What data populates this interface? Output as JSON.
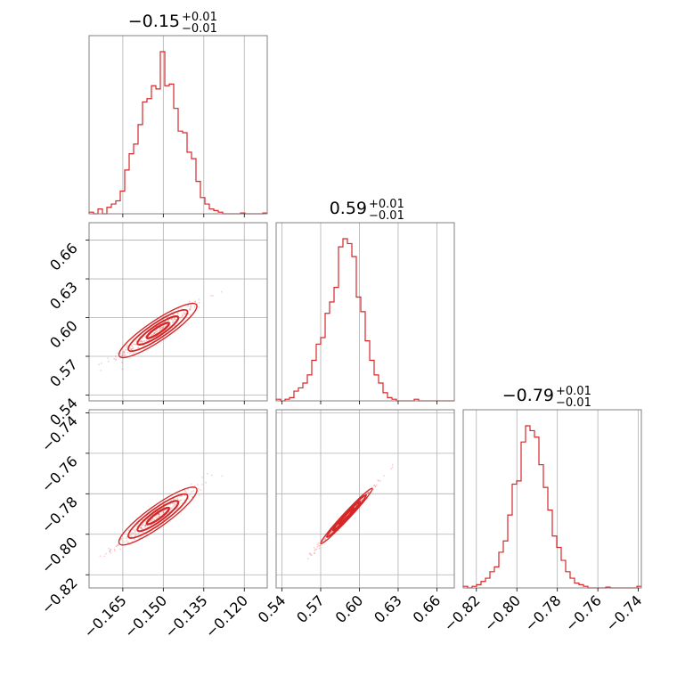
{
  "chart_data": {
    "type": "corner",
    "color": "#d62728",
    "parameters": [
      {
        "title_value": "−0.15",
        "title_plus": "+0.01",
        "title_minus": "−0.01",
        "mean": -0.152,
        "sd": 0.0068,
        "range": [
          -0.1775,
          -0.1115
        ],
        "ticks": [
          -0.165,
          -0.15,
          -0.135,
          -0.12
        ],
        "tick_labels": [
          "−0.165",
          "−0.150",
          "−0.135",
          "−0.120"
        ],
        "hist": [
          0.01,
          0.0,
          0.03,
          0.0,
          0.04,
          0.06,
          0.08,
          0.14,
          0.27,
          0.37,
          0.43,
          0.55,
          0.69,
          0.71,
          0.79,
          0.77,
          1.0,
          0.79,
          0.8,
          0.65,
          0.51,
          0.5,
          0.38,
          0.34,
          0.2,
          0.1,
          0.06,
          0.03,
          0.02,
          0.01,
          0.0,
          0.0,
          0.0,
          0.0,
          0.005,
          0.0,
          0.0,
          0.0,
          0.0,
          0.005
        ]
      },
      {
        "title_value": "0.59",
        "title_plus": "+0.01",
        "title_minus": "−0.01",
        "mean": 0.59,
        "sd": 0.0095,
        "range": [
          0.5355,
          0.6735
        ],
        "ticks": [
          0.54,
          0.57,
          0.6,
          0.63,
          0.66
        ],
        "tick_labels": [
          "0.54",
          "0.57",
          "0.60",
          "0.63",
          "0.66"
        ],
        "hist": [
          0.01,
          0.0,
          0.01,
          0.02,
          0.06,
          0.08,
          0.11,
          0.16,
          0.25,
          0.35,
          0.39,
          0.54,
          0.61,
          0.7,
          0.95,
          1.0,
          0.97,
          0.89,
          0.64,
          0.55,
          0.37,
          0.25,
          0.16,
          0.11,
          0.05,
          0.02,
          0.01,
          0.0,
          0.0,
          0.0,
          0.0,
          0.01,
          0.0,
          0.0,
          0.0,
          0.0,
          0.0,
          0.0,
          0.0,
          0.0
        ]
      },
      {
        "title_value": "−0.79",
        "title_plus": "+0.01",
        "title_minus": "−0.01",
        "mean": -0.791,
        "sd": 0.0065,
        "range": [
          -0.8265,
          -0.7385
        ],
        "ticks": [
          -0.82,
          -0.8,
          -0.78,
          -0.76,
          -0.74
        ],
        "tick_labels": [
          "−0.82",
          "−0.80",
          "−0.78",
          "−0.76",
          "−0.74"
        ],
        "hist": [
          0.01,
          0.0,
          0.01,
          0.02,
          0.04,
          0.06,
          0.1,
          0.13,
          0.22,
          0.29,
          0.45,
          0.64,
          0.66,
          0.9,
          1.0,
          0.97,
          0.93,
          0.76,
          0.62,
          0.48,
          0.32,
          0.25,
          0.17,
          0.1,
          0.06,
          0.03,
          0.02,
          0.01,
          0.0,
          0.0,
          0.0,
          0.0,
          0.005,
          0.0,
          0.0,
          0.0,
          0.0,
          0.0,
          0.0,
          0.01
        ]
      }
    ],
    "correlation": 0.97
  }
}
